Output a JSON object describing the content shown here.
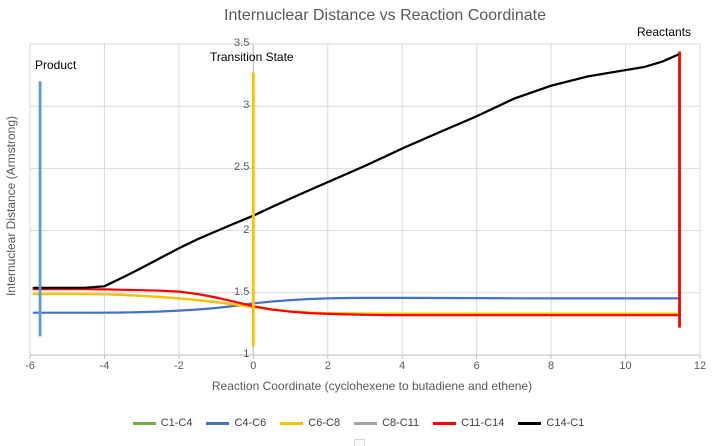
{
  "title": "Internuclear Distance vs Reaction Coordinate",
  "annotations": {
    "product": "Product",
    "transition_state": "Transition State",
    "reactants": "Reactants"
  },
  "colors": {
    "gridline": "#D9D9D9",
    "axis": "#BFBFBF",
    "plot_border": "#D9D9D9",
    "text": "#595959"
  },
  "chart_data": {
    "type": "line",
    "title": "Internuclear Distance vs Reaction Coordinate",
    "xlabel": "Reaction Coordinate (cyclohexene to butadiene and ethene)",
    "ylabel": "Internuclear Distance (Armstrong)",
    "xlim": [
      -6,
      12
    ],
    "ylim": [
      1,
      3.5
    ],
    "x_ticks": [
      -6,
      -4,
      -2,
      0,
      2,
      4,
      6,
      8,
      10,
      12
    ],
    "y_ticks": [
      1,
      1.5,
      2,
      2.5,
      3,
      3.5
    ],
    "grid": true,
    "legend_position": "bottom",
    "x": [
      -5.9,
      -5.5,
      -5,
      -4.5,
      -4,
      -3.5,
      -3,
      -2.5,
      -2,
      -1.5,
      -1,
      -0.5,
      0,
      0.5,
      1,
      1.5,
      2,
      2.5,
      3,
      3.5,
      4,
      5,
      6,
      7,
      8,
      9,
      10,
      10.5,
      11,
      11.45
    ],
    "series": [
      {
        "name": "C1-C4",
        "color": "#70AD47",
        "values": [
          1.49,
          1.49,
          1.49,
          1.49,
          1.488,
          1.483,
          1.476,
          1.466,
          1.455,
          1.441,
          1.425,
          1.406,
          1.386,
          1.366,
          1.351,
          1.341,
          1.336,
          1.334,
          1.333,
          1.333,
          1.333,
          1.333,
          1.333,
          1.333,
          1.333,
          1.333,
          1.333,
          1.333,
          1.333,
          1.333
        ]
      },
      {
        "name": "C4-C6",
        "color": "#4472C4",
        "values": [
          1.34,
          1.34,
          1.34,
          1.34,
          1.34,
          1.342,
          1.345,
          1.35,
          1.357,
          1.366,
          1.378,
          1.395,
          1.415,
          1.43,
          1.441,
          1.45,
          1.455,
          1.458,
          1.459,
          1.459,
          1.459,
          1.458,
          1.457,
          1.456,
          1.455,
          1.455,
          1.455,
          1.455,
          1.455,
          1.455
        ]
      },
      {
        "name": "C6-C8",
        "color": "#FFC000",
        "values": [
          1.49,
          1.49,
          1.49,
          1.49,
          1.488,
          1.483,
          1.476,
          1.466,
          1.455,
          1.441,
          1.425,
          1.406,
          1.386,
          1.366,
          1.351,
          1.341,
          1.336,
          1.334,
          1.333,
          1.333,
          1.333,
          1.333,
          1.333,
          1.333,
          1.333,
          1.333,
          1.333,
          1.333,
          1.333,
          1.333
        ]
      },
      {
        "name": "C8-C11",
        "color": "#A5A5A5",
        "values": [
          1.54,
          1.54,
          1.54,
          1.541,
          1.552,
          1.625,
          1.7,
          1.78,
          1.858,
          1.93,
          1.995,
          2.058,
          2.12,
          2.19,
          2.258,
          2.325,
          2.39,
          2.455,
          2.52,
          2.59,
          2.66,
          2.79,
          2.92,
          3.06,
          3.165,
          3.24,
          3.29,
          3.315,
          3.36,
          3.42
        ]
      },
      {
        "name": "C11-C14",
        "color": "#FF0000",
        "values": [
          1.53,
          1.53,
          1.53,
          1.529,
          1.527,
          1.524,
          1.521,
          1.517,
          1.51,
          1.49,
          1.462,
          1.428,
          1.392,
          1.366,
          1.348,
          1.337,
          1.33,
          1.326,
          1.323,
          1.321,
          1.32,
          1.32,
          1.32,
          1.32,
          1.32,
          1.32,
          1.32,
          1.32,
          1.32,
          1.32
        ]
      },
      {
        "name": "C14-C1",
        "color": "#000000",
        "values": [
          1.54,
          1.54,
          1.54,
          1.541,
          1.552,
          1.625,
          1.7,
          1.78,
          1.858,
          1.93,
          1.995,
          2.058,
          2.12,
          2.19,
          2.258,
          2.325,
          2.39,
          2.455,
          2.52,
          2.59,
          2.66,
          2.79,
          2.92,
          3.06,
          3.165,
          3.24,
          3.29,
          3.315,
          3.36,
          3.42
        ]
      }
    ],
    "markers": [
      {
        "id": "product",
        "label": "Product",
        "x": -5.73,
        "y_from": 1.15,
        "y_to": 3.2,
        "color": "#5B9BD5"
      },
      {
        "id": "transition-state",
        "label": "Transition State",
        "x": 0,
        "y_from": 1.07,
        "y_to": 3.27,
        "color": "#FFC000"
      },
      {
        "id": "reactants",
        "label": "Reactants",
        "x": 11.45,
        "y_from": 1.22,
        "y_to": 3.44,
        "color": "#FF0000"
      }
    ]
  }
}
